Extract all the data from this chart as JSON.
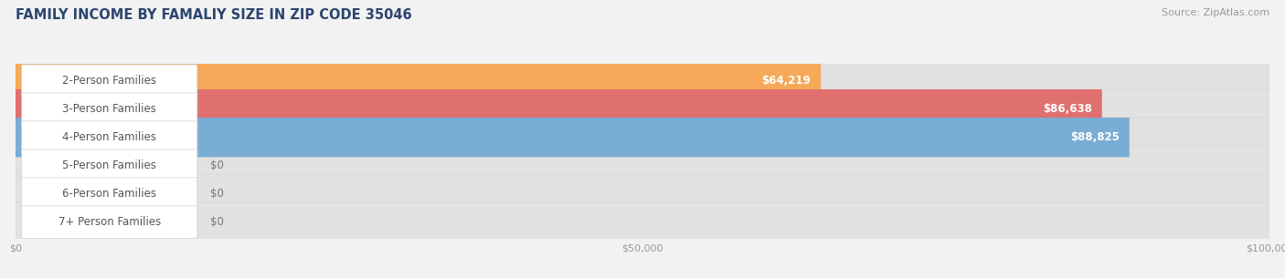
{
  "title": "FAMILY INCOME BY FAMALIY SIZE IN ZIP CODE 35046",
  "source": "Source: ZipAtlas.com",
  "categories": [
    "2-Person Families",
    "3-Person Families",
    "4-Person Families",
    "5-Person Families",
    "6-Person Families",
    "7+ Person Families"
  ],
  "values": [
    64219,
    86638,
    88825,
    0,
    0,
    0
  ],
  "bar_colors": [
    "#F5A959",
    "#E07070",
    "#7aadd4",
    "#c9aed4",
    "#7accc4",
    "#b0b8e0"
  ],
  "value_labels": [
    "$64,219",
    "$86,638",
    "$88,825",
    "$0",
    "$0",
    "$0"
  ],
  "xlim": [
    0,
    100000
  ],
  "xticks": [
    0,
    50000,
    100000
  ],
  "xtick_labels": [
    "$0",
    "$50,000",
    "$100,000"
  ],
  "background_color": "#f2f2f2",
  "bar_bg_color": "#e2e2e2",
  "bar_bg_border": "#d5d5d5",
  "pill_border": "#d0d0d0",
  "title_color": "#2b4570",
  "source_color": "#999999",
  "label_font_size": 8.5,
  "title_font_size": 10.5,
  "source_font_size": 8
}
